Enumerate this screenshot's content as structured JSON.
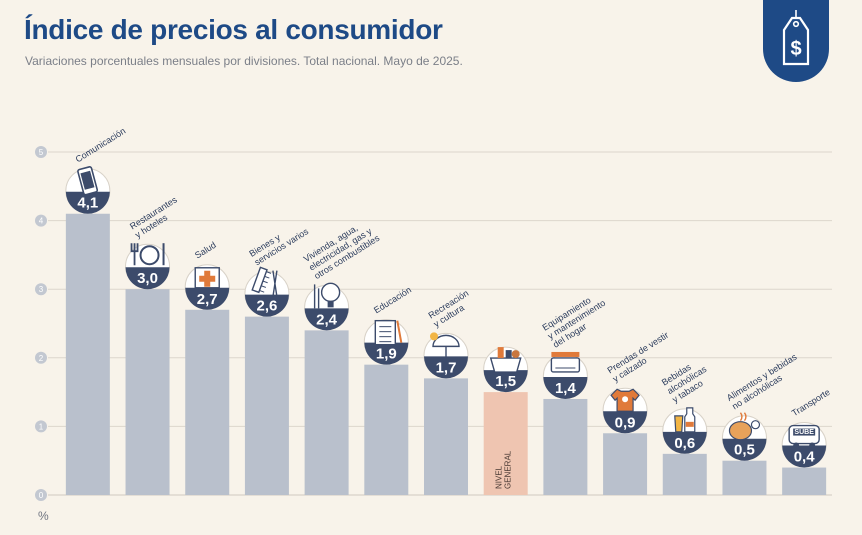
{
  "header": {
    "title": "Índice de precios al consumidor",
    "subtitle": "Variaciones porcentuales mensuales por divisiones. Total nacional. Mayo de 2025."
  },
  "colors": {
    "bar": "#b9c0cc",
    "bar_general": "#efc5b1",
    "bubble": "#3c4b6b",
    "title": "#1e4a86",
    "icon_accent": "#e07a3a"
  },
  "chart_data": {
    "type": "bar",
    "title": "Índice de precios al consumidor",
    "subtitle": "Variaciones porcentuales mensuales por divisiones. Total nacional. Mayo de 2025.",
    "ylabel": "%",
    "ylim": [
      0,
      5
    ],
    "yticks": [
      "0",
      "1",
      "2",
      "3",
      "4",
      "5"
    ],
    "grid": true,
    "categories": [
      [
        "Comunicación"
      ],
      [
        "Restaurantes",
        "y hoteles"
      ],
      [
        "Salud"
      ],
      [
        "Bienes y",
        "servicios varios"
      ],
      [
        "Vivienda, agua,",
        "electricidad, gas y",
        "otros combustibles"
      ],
      [
        "Educación"
      ],
      [
        "Recreación",
        "y cultura"
      ],
      [
        "NIVEL",
        "GENERAL"
      ],
      [
        "Equipamiento",
        "y mantenimiento",
        "del hogar"
      ],
      [
        "Prendas de vestir",
        "y calzado"
      ],
      [
        "Bebidas",
        "alcohólicas",
        "y tabaco"
      ],
      [
        "Alimentos y bebidas",
        "no alcohólicas"
      ],
      [
        "Transporte"
      ]
    ],
    "values": [
      4.1,
      3.0,
      2.7,
      2.6,
      2.4,
      1.9,
      1.7,
      1.5,
      1.4,
      0.9,
      0.6,
      0.5,
      0.4
    ],
    "value_labels": [
      "4,1",
      "3,0",
      "2,7",
      "2,6",
      "2,4",
      "1,9",
      "1,7",
      "1,5",
      "1,4",
      "0,9",
      "0,6",
      "0,5",
      "0,4"
    ],
    "icons": [
      "phone-icon",
      "utensils-icon",
      "medical-kit-icon",
      "comb-icon",
      "lightbulb-icon",
      "notebook-icon",
      "umbrella-icon",
      "general-basket-icon",
      "air-conditioner-icon",
      "clothing-icon",
      "drink-icon",
      "food-icon",
      "bus-icon"
    ],
    "general_index": 7,
    "icon_texts": {
      "12": "SUBE"
    }
  }
}
